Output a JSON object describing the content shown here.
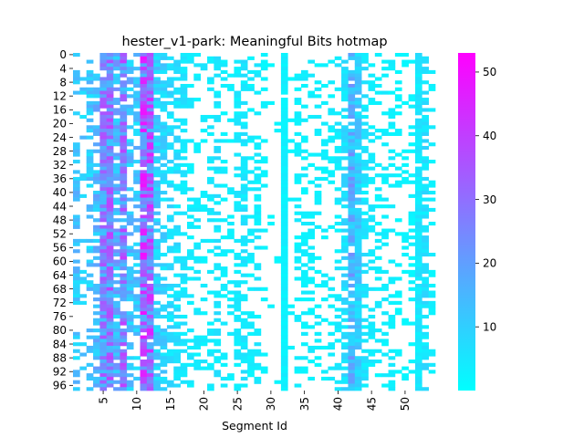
{
  "chart_data": {
    "type": "heatmap",
    "title": "hester_v1-park: Meaningful Bits hotmap",
    "xlabel": "Segment Id",
    "ylabel": "",
    "n_rows": 98,
    "n_cols": 54,
    "x_tick_labels": [
      "5",
      "10",
      "15",
      "20",
      "25",
      "30",
      "35",
      "40",
      "45",
      "50"
    ],
    "x_tick_values": [
      5,
      10,
      15,
      20,
      25,
      30,
      35,
      40,
      45,
      50
    ],
    "y_tick_labels": [
      "0",
      "4",
      "8",
      "12",
      "16",
      "20",
      "24",
      "28",
      "32",
      "36",
      "40",
      "44",
      "48",
      "52",
      "56",
      "60",
      "64",
      "68",
      "72",
      "76",
      "80",
      "84",
      "88",
      "92",
      "96"
    ],
    "y_tick_values": [
      0,
      4,
      8,
      12,
      16,
      20,
      24,
      28,
      32,
      36,
      40,
      44,
      48,
      52,
      56,
      60,
      64,
      68,
      72,
      76,
      80,
      84,
      88,
      92,
      96
    ],
    "colorbar": {
      "min": 0,
      "max": 53,
      "tick_labels": [
        "10",
        "20",
        "30",
        "40",
        "50"
      ],
      "tick_values": [
        10,
        20,
        30,
        40,
        50
      ],
      "colormap": "cool",
      "color_low": "#00ffff",
      "color_high": "#ff00ff"
    },
    "empty_color": "#ffffff",
    "column_density": [
      0.5,
      0.2,
      0.45,
      0.55,
      0.95,
      0.98,
      0.75,
      0.9,
      0.55,
      0.5,
      0.98,
      0.97,
      0.7,
      0.6,
      0.5,
      0.45,
      0.5,
      0.35,
      0.3,
      0.3,
      0.35,
      0.45,
      0.3,
      0.25,
      0.5,
      0.55,
      0.35,
      0.4,
      0.2,
      0.05,
      0.1,
      0.97,
      0.05,
      0.45,
      0.4,
      0.35,
      0.3,
      0.3,
      0.25,
      0.35,
      0.6,
      0.9,
      0.95,
      0.5,
      0.4,
      0.35,
      0.3,
      0.3,
      0.25,
      0.2,
      0.25,
      0.95,
      0.6,
      0.3
    ],
    "column_mean": [
      12,
      10,
      11,
      14,
      24,
      26,
      16,
      26,
      13,
      12,
      33,
      30,
      10,
      9,
      7,
      6,
      5,
      4,
      4,
      4,
      4,
      5,
      3,
      3,
      4,
      5,
      3,
      4,
      2,
      2,
      2,
      3,
      2,
      3,
      3,
      3,
      3,
      3,
      3,
      4,
      7,
      16,
      10,
      5,
      4,
      3,
      3,
      3,
      2,
      2,
      2,
      5,
      6,
      3
    ],
    "seed": 20240131
  }
}
